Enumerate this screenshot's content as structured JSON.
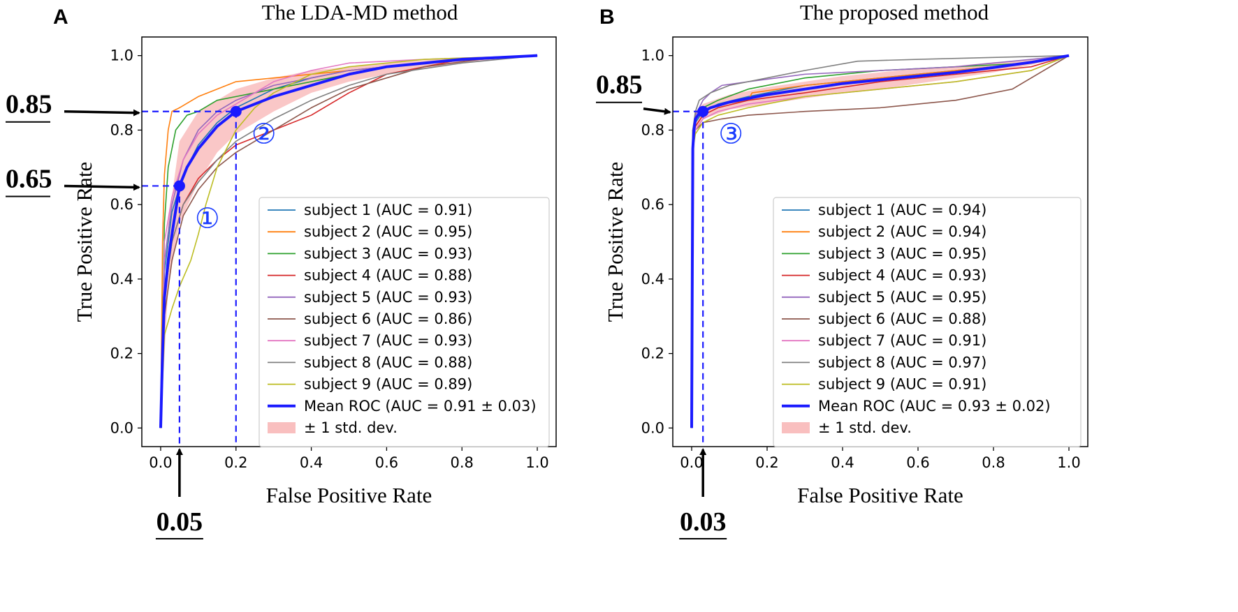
{
  "chart_data": [
    {
      "panel": "A",
      "type": "line",
      "title": "The LDA-MD method",
      "xlabel": "False Positive Rate",
      "ylabel": "True Positive Rate",
      "xlim": [
        -0.05,
        1.05
      ],
      "ylim": [
        -0.05,
        1.05
      ],
      "xticks": [
        "0.0",
        "0.2",
        "0.4",
        "0.6",
        "0.8",
        "1.0"
      ],
      "yticks": [
        "0.0",
        "0.2",
        "0.4",
        "0.6",
        "0.8",
        "1.0"
      ],
      "legend_position": "lower-right",
      "series": [
        {
          "name": "subject 1 (AUC = 0.91)",
          "color": "#1f77b4",
          "x": [
            0,
            0.01,
            0.03,
            0.06,
            0.1,
            0.15,
            0.2,
            0.3,
            0.4,
            0.5,
            0.6,
            0.8,
            1.0
          ],
          "y": [
            0,
            0.42,
            0.58,
            0.68,
            0.76,
            0.82,
            0.86,
            0.91,
            0.94,
            0.96,
            0.97,
            0.99,
            1.0
          ]
        },
        {
          "name": "subject 2 (AUC = 0.95)",
          "color": "#ff7f0e",
          "x": [
            0,
            0.005,
            0.01,
            0.02,
            0.03,
            0.05,
            0.1,
            0.2,
            0.3,
            0.5,
            0.7,
            1.0
          ],
          "y": [
            0,
            0.5,
            0.68,
            0.8,
            0.85,
            0.86,
            0.89,
            0.93,
            0.94,
            0.96,
            0.98,
            1.0
          ]
        },
        {
          "name": "subject 3 (AUC = 0.93)",
          "color": "#2ca02c",
          "x": [
            0,
            0.01,
            0.02,
            0.04,
            0.07,
            0.1,
            0.15,
            0.2,
            0.3,
            0.45,
            0.6,
            0.8,
            1.0
          ],
          "y": [
            0,
            0.55,
            0.7,
            0.8,
            0.84,
            0.85,
            0.88,
            0.89,
            0.91,
            0.94,
            0.97,
            0.99,
            1.0
          ]
        },
        {
          "name": "subject 4 (AUC = 0.88)",
          "color": "#d62728",
          "x": [
            0,
            0.01,
            0.03,
            0.06,
            0.1,
            0.15,
            0.2,
            0.25,
            0.3,
            0.4,
            0.5,
            0.6,
            0.8,
            1.0
          ],
          "y": [
            0,
            0.35,
            0.5,
            0.6,
            0.67,
            0.72,
            0.76,
            0.78,
            0.8,
            0.84,
            0.9,
            0.95,
            0.99,
            1.0
          ]
        },
        {
          "name": "subject 5 (AUC = 0.93)",
          "color": "#9467bd",
          "x": [
            0,
            0.01,
            0.03,
            0.06,
            0.1,
            0.15,
            0.2,
            0.3,
            0.4,
            0.5,
            0.7,
            1.0
          ],
          "y": [
            0,
            0.45,
            0.6,
            0.72,
            0.8,
            0.85,
            0.88,
            0.92,
            0.94,
            0.96,
            0.98,
            1.0
          ]
        },
        {
          "name": "subject 6 (AUC = 0.86)",
          "color": "#8c564b",
          "x": [
            0,
            0.01,
            0.03,
            0.06,
            0.1,
            0.15,
            0.2,
            0.3,
            0.4,
            0.5,
            0.6,
            0.7,
            0.85,
            1.0
          ],
          "y": [
            0,
            0.3,
            0.45,
            0.57,
            0.64,
            0.7,
            0.74,
            0.8,
            0.86,
            0.91,
            0.94,
            0.97,
            0.99,
            1.0
          ]
        },
        {
          "name": "subject 7 (AUC = 0.93)",
          "color": "#e377c2",
          "x": [
            0,
            0.01,
            0.03,
            0.06,
            0.1,
            0.15,
            0.2,
            0.3,
            0.4,
            0.5,
            0.7,
            1.0
          ],
          "y": [
            0,
            0.5,
            0.62,
            0.72,
            0.79,
            0.84,
            0.87,
            0.93,
            0.96,
            0.98,
            0.99,
            1.0
          ]
        },
        {
          "name": "subject 8 (AUC = 0.88)",
          "color": "#7f7f7f",
          "x": [
            0,
            0.01,
            0.03,
            0.06,
            0.1,
            0.15,
            0.2,
            0.3,
            0.4,
            0.5,
            0.6,
            0.8,
            1.0
          ],
          "y": [
            0,
            0.35,
            0.5,
            0.6,
            0.66,
            0.72,
            0.77,
            0.83,
            0.88,
            0.92,
            0.95,
            0.98,
            1.0
          ]
        },
        {
          "name": "subject 9 (AUC = 0.89)",
          "color": "#bcbd22",
          "x": [
            0,
            0.01,
            0.03,
            0.05,
            0.08,
            0.1,
            0.12,
            0.15,
            0.2,
            0.25,
            0.3,
            0.4,
            0.5,
            0.7,
            1.0
          ],
          "y": [
            0,
            0.25,
            0.32,
            0.38,
            0.45,
            0.52,
            0.6,
            0.7,
            0.8,
            0.86,
            0.9,
            0.95,
            0.97,
            0.99,
            1.0
          ]
        },
        {
          "name": "Mean ROC (AUC = 0.91 ± 0.03)",
          "color": "#1a1aff",
          "bold": true,
          "x": [
            0,
            0.005,
            0.01,
            0.02,
            0.03,
            0.05,
            0.07,
            0.1,
            0.15,
            0.2,
            0.3,
            0.4,
            0.5,
            0.6,
            0.7,
            0.8,
            0.9,
            1.0
          ],
          "y": [
            0,
            0.2,
            0.35,
            0.45,
            0.52,
            0.65,
            0.7,
            0.75,
            0.81,
            0.85,
            0.89,
            0.92,
            0.95,
            0.97,
            0.98,
            0.99,
            0.995,
            1.0
          ]
        }
      ],
      "band": {
        "name": "± 1 std. dev.",
        "color": "#f8b4b4",
        "x": [
          0,
          0.02,
          0.05,
          0.1,
          0.15,
          0.2,
          0.3,
          0.4,
          0.5,
          0.6,
          0.8,
          1.0
        ],
        "lower": [
          0,
          0.38,
          0.55,
          0.66,
          0.74,
          0.79,
          0.85,
          0.9,
          0.93,
          0.95,
          0.98,
          1.0
        ],
        "upper": [
          0,
          0.55,
          0.77,
          0.85,
          0.88,
          0.91,
          0.94,
          0.96,
          0.97,
          0.98,
          0.995,
          1.0
        ]
      },
      "highlights": [
        {
          "x": 0.05,
          "y": 0.65,
          "label": "①"
        },
        {
          "x": 0.2,
          "y": 0.85,
          "label": "②"
        }
      ],
      "callouts": {
        "y_values": [
          "0.85",
          "0.65"
        ],
        "x_values": [
          "0.05"
        ]
      }
    },
    {
      "panel": "B",
      "type": "line",
      "title": "The proposed method",
      "xlabel": "False Positive Rate",
      "ylabel": "True Positive Rate",
      "xlim": [
        -0.05,
        1.05
      ],
      "ylim": [
        -0.05,
        1.05
      ],
      "xticks": [
        "0.0",
        "0.2",
        "0.4",
        "0.6",
        "0.8",
        "1.0"
      ],
      "yticks": [
        "0.0",
        "0.2",
        "0.4",
        "0.6",
        "0.8",
        "1.0"
      ],
      "legend_position": "lower-right",
      "series": [
        {
          "name": "subject 1 (AUC = 0.94)",
          "color": "#1f77b4",
          "x": [
            0,
            0.003,
            0.01,
            0.03,
            0.07,
            0.15,
            0.3,
            0.5,
            0.7,
            0.9,
            1.0
          ],
          "y": [
            0,
            0.78,
            0.82,
            0.85,
            0.87,
            0.89,
            0.92,
            0.94,
            0.96,
            0.98,
            1.0
          ]
        },
        {
          "name": "subject 2 (AUC = 0.94)",
          "color": "#ff7f0e",
          "x": [
            0,
            0.003,
            0.01,
            0.03,
            0.08,
            0.15,
            0.16,
            0.3,
            0.5,
            0.7,
            0.9,
            1.0
          ],
          "y": [
            0,
            0.8,
            0.83,
            0.85,
            0.87,
            0.88,
            0.9,
            0.92,
            0.94,
            0.96,
            0.98,
            1.0
          ]
        },
        {
          "name": "subject 3 (AUC = 0.95)",
          "color": "#2ca02c",
          "x": [
            0,
            0.003,
            0.01,
            0.03,
            0.07,
            0.15,
            0.3,
            0.5,
            0.7,
            0.9,
            1.0
          ],
          "y": [
            0,
            0.8,
            0.83,
            0.86,
            0.88,
            0.91,
            0.94,
            0.96,
            0.97,
            0.98,
            1.0
          ]
        },
        {
          "name": "subject 4 (AUC = 0.93)",
          "color": "#d62728",
          "x": [
            0,
            0.003,
            0.01,
            0.03,
            0.07,
            0.15,
            0.3,
            0.5,
            0.7,
            0.9,
            1.0
          ],
          "y": [
            0,
            0.78,
            0.81,
            0.84,
            0.86,
            0.88,
            0.9,
            0.93,
            0.95,
            0.97,
            1.0
          ]
        },
        {
          "name": "subject 5 (AUC = 0.95)",
          "color": "#9467bd",
          "x": [
            0,
            0.003,
            0.01,
            0.03,
            0.05,
            0.08,
            0.15,
            0.3,
            0.5,
            0.7,
            0.9,
            1.0
          ],
          "y": [
            0,
            0.8,
            0.84,
            0.88,
            0.9,
            0.92,
            0.93,
            0.95,
            0.96,
            0.97,
            0.99,
            1.0
          ]
        },
        {
          "name": "subject 6 (AUC = 0.88)",
          "color": "#8c564b",
          "x": [
            0,
            0.003,
            0.01,
            0.03,
            0.08,
            0.15,
            0.3,
            0.5,
            0.7,
            0.85,
            0.95,
            1.0
          ],
          "y": [
            0,
            0.75,
            0.8,
            0.82,
            0.83,
            0.84,
            0.85,
            0.86,
            0.88,
            0.91,
            0.97,
            1.0
          ]
        },
        {
          "name": "subject 7 (AUC = 0.91)",
          "color": "#e377c2",
          "x": [
            0,
            0.003,
            0.01,
            0.03,
            0.07,
            0.15,
            0.3,
            0.5,
            0.7,
            0.9,
            1.0
          ],
          "y": [
            0,
            0.77,
            0.8,
            0.83,
            0.85,
            0.87,
            0.89,
            0.91,
            0.93,
            0.96,
            1.0
          ]
        },
        {
          "name": "subject 8 (AUC = 0.97)",
          "color": "#7f7f7f",
          "x": [
            0,
            0.003,
            0.01,
            0.02,
            0.05,
            0.1,
            0.2,
            0.3,
            0.44,
            0.6,
            0.8,
            1.0
          ],
          "y": [
            0,
            0.8,
            0.85,
            0.88,
            0.9,
            0.92,
            0.94,
            0.96,
            0.985,
            0.99,
            0.995,
            1.0
          ]
        },
        {
          "name": "subject 9 (AUC = 0.91)",
          "color": "#bcbd22",
          "x": [
            0,
            0.003,
            0.01,
            0.03,
            0.07,
            0.15,
            0.3,
            0.5,
            0.7,
            0.9,
            1.0
          ],
          "y": [
            0,
            0.75,
            0.79,
            0.82,
            0.84,
            0.86,
            0.89,
            0.91,
            0.93,
            0.96,
            1.0
          ]
        },
        {
          "name": "Mean ROC (AUC = 0.93 ± 0.02)",
          "color": "#1a1aff",
          "bold": true,
          "x": [
            0,
            0.003,
            0.006,
            0.01,
            0.02,
            0.03,
            0.05,
            0.1,
            0.2,
            0.3,
            0.4,
            0.5,
            0.6,
            0.7,
            0.8,
            0.9,
            1.0
          ],
          "y": [
            0,
            0.75,
            0.8,
            0.83,
            0.845,
            0.85,
            0.86,
            0.875,
            0.895,
            0.91,
            0.925,
            0.935,
            0.945,
            0.955,
            0.968,
            0.982,
            1.0
          ]
        }
      ],
      "band": {
        "name": "± 1 std. dev.",
        "color": "#f8b4b4",
        "x": [
          0,
          0.01,
          0.03,
          0.1,
          0.2,
          0.3,
          0.4,
          0.5,
          0.6,
          0.7,
          0.8,
          0.9,
          1.0
        ],
        "lower": [
          0,
          0.8,
          0.83,
          0.855,
          0.87,
          0.885,
          0.9,
          0.91,
          0.925,
          0.94,
          0.955,
          0.975,
          1.0
        ],
        "upper": [
          0,
          0.85,
          0.87,
          0.895,
          0.915,
          0.93,
          0.945,
          0.955,
          0.965,
          0.972,
          0.982,
          0.99,
          1.0
        ]
      },
      "highlights": [
        {
          "x": 0.03,
          "y": 0.85,
          "label": "③"
        }
      ],
      "callouts": {
        "y_values": [
          "0.85"
        ],
        "x_values": [
          "0.03"
        ]
      }
    }
  ]
}
